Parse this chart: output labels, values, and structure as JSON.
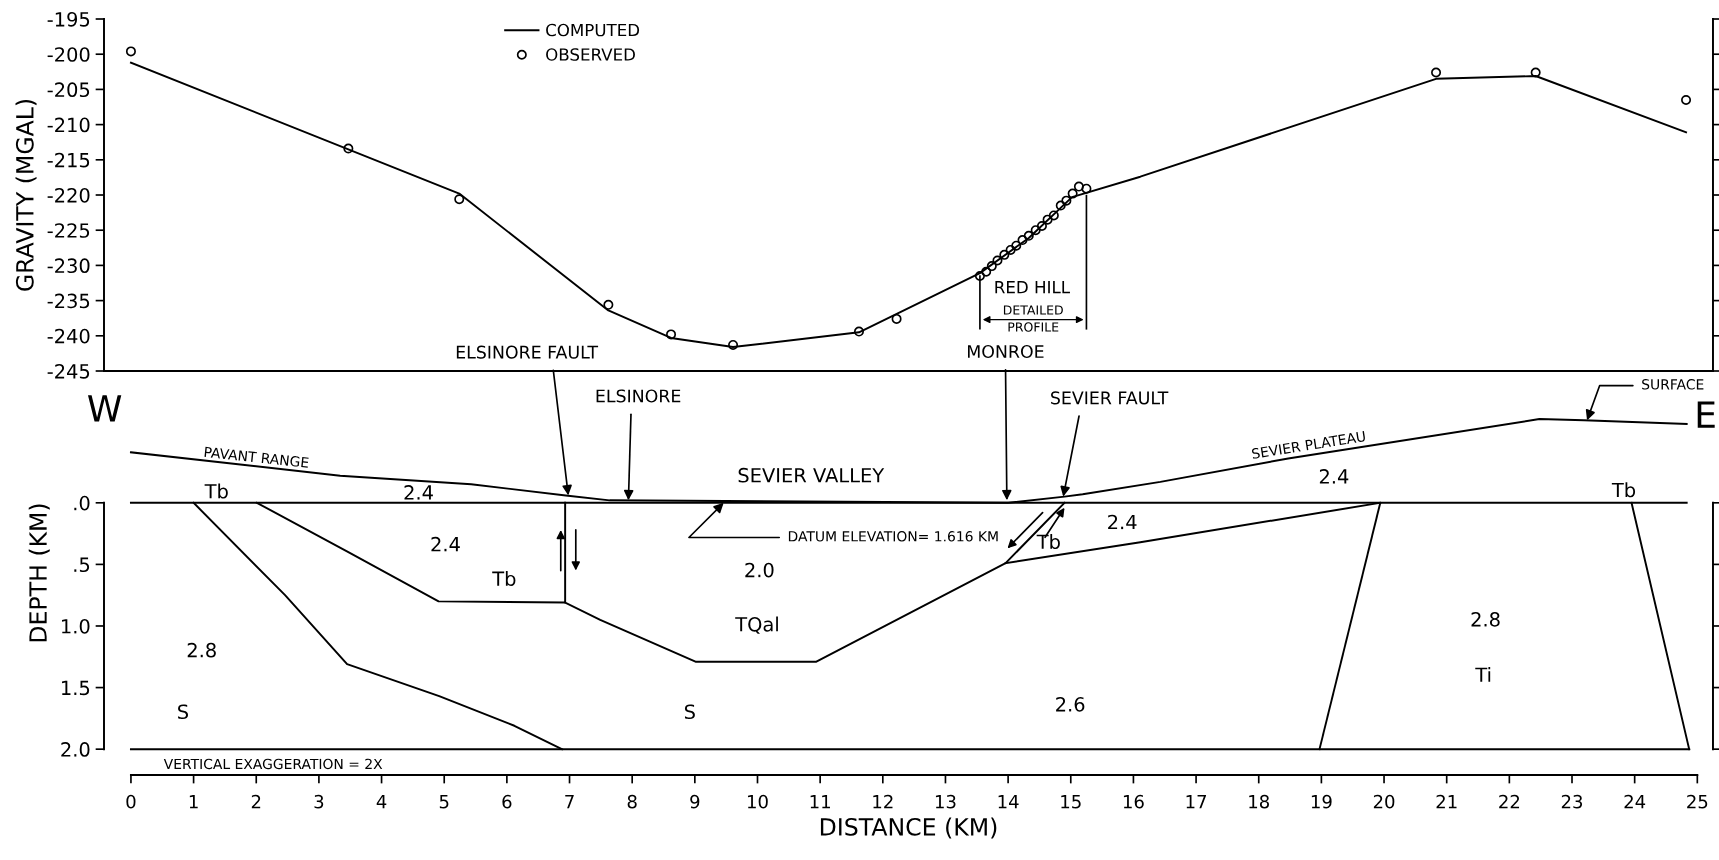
{
  "chart_data": [
    {
      "type": "line",
      "ylabel": "GRAVITY (MGAL)",
      "xlim": [
        -0.43,
        25.25
      ],
      "ylim": [
        -245,
        -195
      ],
      "yticks": [
        -195,
        -200,
        -205,
        -210,
        -215,
        -220,
        -225,
        -230,
        -235,
        -240,
        -245
      ],
      "tick_labels": "y",
      "legend": "top left",
      "series": [
        {
          "name": "COMPUTED",
          "type": "line",
          "color": "#000000",
          "x": [
            0.0,
            5.24,
            7.62,
            8.62,
            9.61,
            11.62,
            13.55,
            14.33,
            15.02,
            16.11,
            20.83,
            22.42,
            24.82
          ],
          "values": [
            -201.2,
            -219.8,
            -236.4,
            -240.3,
            -241.6,
            -239.5,
            -231.1,
            -226.1,
            -220.3,
            -217.4,
            -203.5,
            -203.1,
            -211.1
          ]
        },
        {
          "name": "OBSERVED",
          "type": "scatter",
          "marker": "circle",
          "color": "#000000",
          "x": [
            0.0,
            3.47,
            5.24,
            7.62,
            8.62,
            9.61,
            11.62,
            12.22,
            13.55,
            13.65,
            13.74,
            13.83,
            13.94,
            14.04,
            14.13,
            14.23,
            14.33,
            14.44,
            14.54,
            14.63,
            14.73,
            14.84,
            14.93,
            15.03,
            15.13,
            15.25,
            20.83,
            22.42,
            24.82
          ],
          "values": [
            -199.6,
            -213.4,
            -220.6,
            -235.6,
            -239.8,
            -241.3,
            -239.4,
            -237.6,
            -231.5,
            -230.9,
            -230.1,
            -229.3,
            -228.5,
            -227.8,
            -227.2,
            -226.4,
            -225.8,
            -225.0,
            -224.4,
            -223.5,
            -222.9,
            -221.5,
            -220.8,
            -219.8,
            -218.8,
            -219.1,
            -202.6,
            -202.6,
            -206.5
          ]
        }
      ],
      "ref_lines": [
        {
          "axis": "x",
          "value": 13.55
        },
        {
          "axis": "x",
          "value": 15.25
        }
      ],
      "annotations": [
        "RED HILL",
        "DETAILED",
        "PROFILE"
      ]
    },
    {
      "type": "line",
      "xlabel": "DISTANCE (KM)",
      "ylabel": "DEPTH (KM)",
      "xlim": [
        -0.43,
        25.25
      ],
      "ylim": [
        2.21,
        -1.07
      ],
      "xticks": [
        0,
        1,
        2,
        3,
        4,
        5,
        6,
        7,
        8,
        9,
        10,
        11,
        12,
        13,
        14,
        15,
        16,
        17,
        18,
        19,
        20,
        21,
        22,
        23,
        24,
        25
      ],
      "yticks": [
        {
          "value": 0,
          "label": ".0"
        },
        {
          "value": 0.5,
          "label": ".5"
        },
        {
          "value": 1.0,
          "label": "1.0"
        },
        {
          "value": 1.5,
          "label": "1.5"
        },
        {
          "value": 2.0,
          "label": "2.0"
        }
      ],
      "series": [
        {
          "color": "#000000",
          "x": [
            0.0,
            3.34,
            5.43,
            6.94,
            7.64,
            14.0,
            14.9,
            15.19,
            16.43,
            18.47,
            22.48,
            23.19,
            24.83
          ],
          "values": [
            -0.41,
            -0.22,
            -0.15,
            -0.06,
            -0.02,
            0.0,
            -0.05,
            -0.07,
            -0.17,
            -0.36,
            -0.68,
            -0.67,
            -0.64
          ]
        },
        {
          "color": "#000000",
          "x": [
            0.0,
            24.83
          ],
          "values": [
            0.0,
            0.0
          ]
        },
        {
          "color": "#000000",
          "x": [
            0.0,
            24.87
          ],
          "values": [
            2.0,
            2.0
          ]
        },
        {
          "color": "#000000",
          "x": [
            1.0,
            2.46,
            3.45,
            4.92,
            6.12,
            6.88
          ],
          "values": [
            0.0,
            0.75,
            1.31,
            1.57,
            1.81,
            2.0
          ]
        },
        {
          "color": "#000000",
          "x": [
            2.01,
            3.47,
            4.91,
            6.93,
            6.93
          ],
          "values": [
            0.0,
            0.4,
            0.8,
            0.81,
            0.0
          ]
        },
        {
          "color": "#000000",
          "x": [
            6.93,
            7.49,
            9.01,
            10.94,
            13.96,
            14.9
          ],
          "values": [
            0.81,
            0.95,
            1.29,
            1.29,
            0.49,
            0.0
          ]
        },
        {
          "color": "#000000",
          "x": [
            13.96,
            16.11,
            19.94
          ],
          "values": [
            0.49,
            0.32,
            0.0
          ]
        },
        {
          "color": "#000000",
          "x": [
            19.94,
            18.97
          ],
          "values": [
            0.0,
            2.0
          ]
        },
        {
          "color": "#000000",
          "x": [
            23.95,
            24.87
          ],
          "values": [
            0.0,
            2.0
          ]
        }
      ],
      "annotations": [
        {
          "text": "ELSINORE FAULT",
          "x": 6.98,
          "y": -0.06
        },
        {
          "text": "ELSINORE",
          "x": 7.94,
          "y": -0.02
        },
        {
          "text": "MONROE",
          "x": 13.98,
          "y": -0.02
        },
        {
          "text": "SEVIER FAULT",
          "x": 14.88,
          "y": -0.05
        },
        {
          "text": "SURFACE",
          "x": 23.24,
          "y": -0.67
        },
        {
          "text": "DATUM ELEVATION= 1.616 KM",
          "x": 9.46,
          "y": 0.0
        },
        "W",
        "PAVANT RANGE",
        "Tb",
        "2.4",
        "2.4",
        "Tb",
        "2.8",
        "S",
        "SEVIER VALLEY",
        "2.0",
        "TQal",
        "S",
        "Tb",
        "2.4",
        "2.6",
        "SEVIER PLATEAU",
        "2.4",
        "Tb",
        "2.8",
        "Ti",
        "E",
        "VERTICAL EXAGGERATION = 2X"
      ]
    }
  ]
}
